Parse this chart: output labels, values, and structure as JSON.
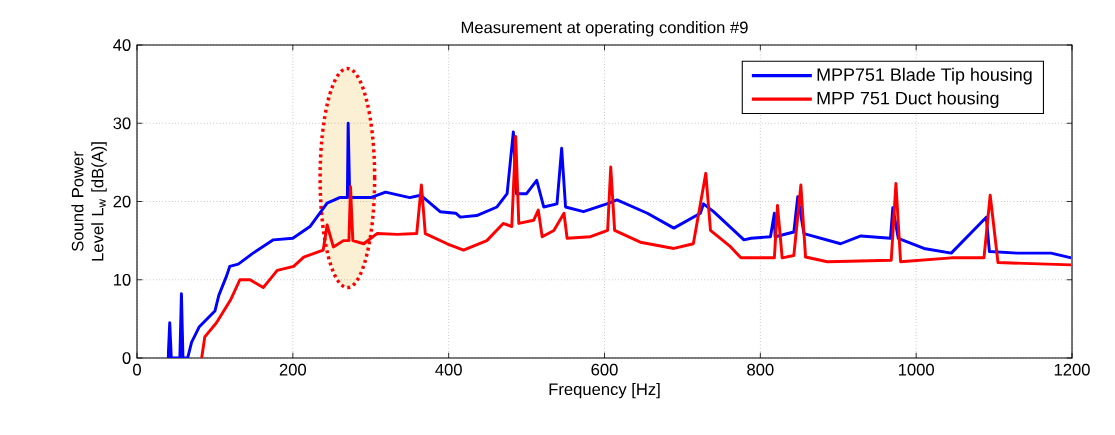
{
  "chart_data": {
    "type": "line",
    "title": "Measurement at operating condition #9",
    "xlabel": "Frequency [Hz]",
    "ylabel": "Sound Power Level L$_{w}$ [dB(A)]",
    "xlim": [
      0,
      1200
    ],
    "ylim": [
      0,
      40
    ],
    "xticks": [
      0,
      200,
      400,
      600,
      800,
      1000,
      1200
    ],
    "yticks": [
      0,
      10,
      20,
      30,
      40
    ],
    "grid": true,
    "legend": "top right",
    "line_style": "solid",
    "marker": "none",
    "series": [
      {
        "name": "MPP751 Blade Tip housing",
        "color": "#0000ff",
        "x": [
          40,
          42,
          44,
          55,
          57,
          59,
          65,
          70,
          80,
          90,
          100,
          105,
          115,
          119,
          130,
          149,
          175,
          200,
          222,
          244,
          260,
          270,
          271,
          273,
          276,
          300,
          319,
          350,
          364,
          389,
          409,
          415,
          436,
          462,
          475,
          483,
          487,
          500,
          513,
          522,
          539,
          545,
          550,
          573,
          603,
          616,
          655,
          689,
          723,
          727,
          740,
          779,
          788,
          813,
          818,
          819,
          843,
          848,
          856,
          903,
          929,
          967,
          970,
          977,
          1010,
          1045,
          1090,
          1094,
          1130,
          1173,
          1199
        ],
        "values": [
          0,
          4.5,
          0,
          0,
          8.2,
          0,
          0,
          2,
          4,
          5,
          6,
          8,
          10.5,
          11.7,
          12,
          13.4,
          15.1,
          15.3,
          16.8,
          19.8,
          20.5,
          20.5,
          30,
          20.5,
          20.5,
          20.5,
          21.2,
          20.5,
          20.8,
          18.7,
          18.5,
          18,
          18.2,
          19.3,
          21,
          28.9,
          21,
          21,
          22.7,
          19.3,
          19.7,
          26.8,
          19.3,
          18.7,
          19.7,
          20.2,
          18.5,
          16.6,
          18.5,
          19.7,
          18.7,
          15.1,
          15.3,
          15.5,
          18.5,
          15.5,
          16.1,
          20.6,
          15.9,
          14.6,
          15.6,
          15.3,
          19.2,
          15.3,
          14,
          13.4,
          18,
          13.6,
          13.4,
          13.4,
          12.8
        ]
      },
      {
        "name": "MPP 751 Duct housing",
        "color": "#ff0000",
        "x": [
          83,
          87,
          102,
          120,
          132,
          145,
          162,
          180,
          201,
          214,
          239,
          244,
          252,
          265,
          272,
          274,
          277,
          291,
          308,
          334,
          359,
          365,
          370,
          398,
          419,
          449,
          470,
          481,
          486,
          490,
          509,
          515,
          520,
          535,
          548,
          552,
          582,
          604,
          608,
          613,
          646,
          689,
          714,
          730,
          736,
          762,
          775,
          813,
          818,
          822,
          828,
          843,
          852,
          858,
          886,
          968,
          974,
          980,
          1045,
          1087,
          1095,
          1105,
          1199
        ],
        "values": [
          0,
          2.7,
          4.5,
          7.4,
          10,
          10,
          9,
          11.2,
          11.7,
          12.9,
          13.8,
          17,
          14.2,
          15,
          15,
          21.9,
          15,
          14.6,
          15.9,
          15.8,
          15.9,
          22.1,
          15.9,
          14.6,
          13.8,
          15,
          17.2,
          16.8,
          28.3,
          17.2,
          17.6,
          18.9,
          15.5,
          16.3,
          18.5,
          15.3,
          15.5,
          16.3,
          24.4,
          16.3,
          14.8,
          14,
          14.6,
          23.6,
          16.3,
          14.2,
          12.8,
          12.8,
          12.8,
          19.5,
          12.8,
          13.1,
          22.1,
          12.9,
          12.3,
          12.5,
          22.3,
          12.3,
          12.8,
          12.8,
          20.8,
          12.2,
          11.9
        ]
      }
    ]
  }
}
